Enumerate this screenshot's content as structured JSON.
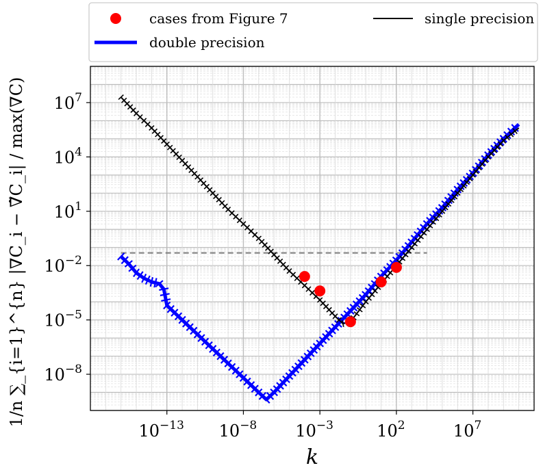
{
  "chart_data": {
    "type": "line",
    "x_scale": "log",
    "y_scale": "log",
    "xlabel": "k",
    "ylabel": "1/n ∑_{i=1}^{n} |∇C_i − ∇̃C_i| / max(∇C)",
    "xlim": [
      1e-18,
      100000000000.0
    ],
    "ylim": [
      1e-10,
      1000000000.0
    ],
    "grid": true,
    "legend_position": "top",
    "x_ticks": [
      {
        "value": 1e-13,
        "base": "10",
        "exp": "−13"
      },
      {
        "value": 1e-08,
        "base": "10",
        "exp": "−8"
      },
      {
        "value": 0.001,
        "base": "10",
        "exp": "−3"
      },
      {
        "value": 100.0,
        "base": "10",
        "exp": "2"
      },
      {
        "value": 10000000.0,
        "base": "10",
        "exp": "7"
      }
    ],
    "y_ticks": [
      {
        "value": 1e-08,
        "base": "10",
        "exp": "−8"
      },
      {
        "value": 1e-05,
        "base": "10",
        "exp": "−5"
      },
      {
        "value": 0.01,
        "base": "10",
        "exp": "−2"
      },
      {
        "value": 10.0,
        "base": "10",
        "exp": "1"
      },
      {
        "value": 10000.0,
        "base": "10",
        "exp": "4"
      },
      {
        "value": 10000000.0,
        "base": "10",
        "exp": "7"
      }
    ],
    "reference_line": {
      "y": 0.05,
      "x_start": 1e-16,
      "x_end": 10000.0,
      "style": "dashed",
      "color": "#808080"
    },
    "series": [
      {
        "name": "single precision",
        "color": "#000000",
        "log10_x": [
          -16,
          -15,
          -14,
          -13,
          -12,
          -11,
          -10,
          -9,
          -8,
          -7,
          -6,
          -5,
          -4,
          -3,
          -2,
          -1.5,
          -1,
          0,
          1,
          2,
          3,
          4,
          5,
          6,
          7,
          8,
          9,
          10
        ],
        "log10_y": [
          7.3,
          6.4,
          5.6,
          4.7,
          3.8,
          2.9,
          2.0,
          1.1,
          0.3,
          -0.5,
          -1.4,
          -2.3,
          -3.1,
          -3.9,
          -4.8,
          -5.2,
          -5.1,
          -4.0,
          -3.0,
          -2.0,
          -1.0,
          0.0,
          1.0,
          2.0,
          3.0,
          4.0,
          4.9,
          5.6
        ]
      },
      {
        "name": "double precision",
        "color": "#0000ff",
        "log10_x": [
          -16,
          -15.5,
          -15,
          -14.5,
          -14,
          -13.5,
          -13.2,
          -13,
          -12,
          -11,
          -10,
          -9,
          -8,
          -7,
          -6.5,
          -6,
          -5,
          -4,
          -3,
          -2,
          -1,
          0,
          1,
          2,
          3,
          4,
          5,
          6,
          7,
          8,
          9,
          10
        ],
        "log10_y": [
          -1.5,
          -1.9,
          -2.4,
          -2.7,
          -2.9,
          -3.0,
          -3.3,
          -4.2,
          -5.0,
          -5.8,
          -6.6,
          -7.4,
          -8.2,
          -9.0,
          -9.4,
          -9.0,
          -8.1,
          -7.2,
          -6.3,
          -5.4,
          -4.5,
          -3.6,
          -2.6,
          -1.7,
          -0.7,
          0.3,
          1.2,
          2.2,
          3.1,
          4.1,
          5.0,
          5.8
        ]
      },
      {
        "name": "cases from Figure 7",
        "type": "scatter",
        "color": "#ff0000",
        "log10_x": [
          -4,
          -3,
          -1,
          1,
          2
        ],
        "log10_y": [
          -2.6,
          -3.4,
          -5.1,
          -2.9,
          -2.1
        ]
      }
    ]
  },
  "legend": {
    "entries": [
      {
        "label": "cases from Figure 7"
      },
      {
        "label": "single precision"
      },
      {
        "label": "double precision"
      }
    ]
  }
}
